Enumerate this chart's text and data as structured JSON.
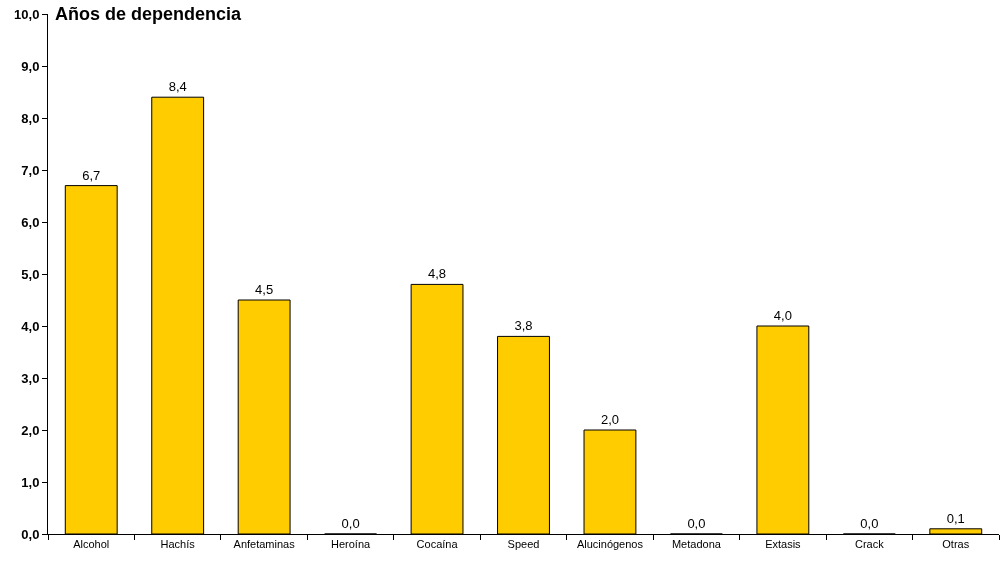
{
  "chart_data": {
    "type": "bar",
    "title": "Años de dependencia",
    "categories": [
      "Alcohol",
      "Hachís",
      "Anfetaminas",
      "Heroína",
      "Cocaína",
      "Speed",
      "Alucinógenos",
      "Metadona",
      "Extasis",
      "Crack",
      "Otras"
    ],
    "values": [
      6.7,
      8.4,
      4.5,
      0.0,
      4.8,
      3.8,
      2.0,
      0.0,
      4.0,
      0.0,
      0.1
    ],
    "value_labels": [
      "6,7",
      "8,4",
      "4,5",
      "0,0",
      "4,8",
      "3,8",
      "2,0",
      "0,0",
      "4,0",
      "0,0",
      "0,1"
    ],
    "color": "#ffcc00",
    "ylim": [
      0,
      10
    ],
    "yticks": [
      {
        "value": 0,
        "label": "0,0"
      },
      {
        "value": 1,
        "label": "1,0"
      },
      {
        "value": 2,
        "label": "2,0"
      },
      {
        "value": 3,
        "label": "3,0"
      },
      {
        "value": 4,
        "label": "4,0"
      },
      {
        "value": 5,
        "label": "5,0"
      },
      {
        "value": 6,
        "label": "6,0"
      },
      {
        "value": 7,
        "label": "7,0"
      },
      {
        "value": 8,
        "label": "8,0"
      },
      {
        "value": 9,
        "label": "9,0"
      },
      {
        "value": 10,
        "label": "10,0"
      }
    ],
    "legend": false
  }
}
